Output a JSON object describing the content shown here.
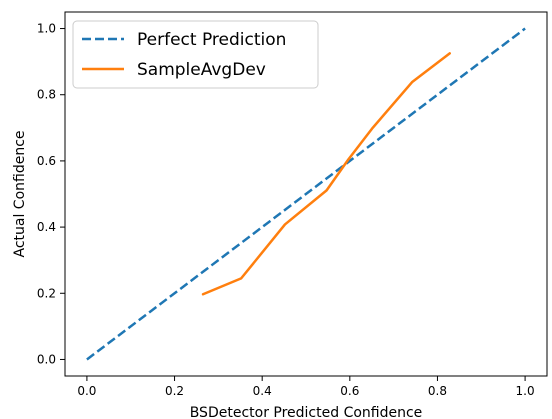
{
  "chart_data": {
    "type": "line",
    "xlabel": "BSDetector Predicted Confidence",
    "ylabel": "Actual Confidence",
    "xlim": [
      -0.05,
      1.05
    ],
    "ylim": [
      -0.05,
      1.05
    ],
    "x_ticks": [
      "0.0",
      "0.2",
      "0.4",
      "0.6",
      "0.8",
      "1.0"
    ],
    "y_ticks": [
      "0.0",
      "0.2",
      "0.4",
      "0.6",
      "0.8",
      "1.0"
    ],
    "grid": false,
    "legend_position": "top-left",
    "series": [
      {
        "name": "Perfect Prediction",
        "color": "#1f77b4",
        "style": "dashed",
        "x": [
          0.0,
          1.0
        ],
        "y": [
          0.0,
          1.0
        ]
      },
      {
        "name": "SampleAvgDev",
        "color": "#ff7f0e",
        "style": "solid",
        "x": [
          0.265,
          0.352,
          0.452,
          0.547,
          0.597,
          0.651,
          0.742,
          0.828
        ],
        "y": [
          0.197,
          0.245,
          0.408,
          0.511,
          0.605,
          0.698,
          0.838,
          0.925
        ]
      }
    ]
  }
}
